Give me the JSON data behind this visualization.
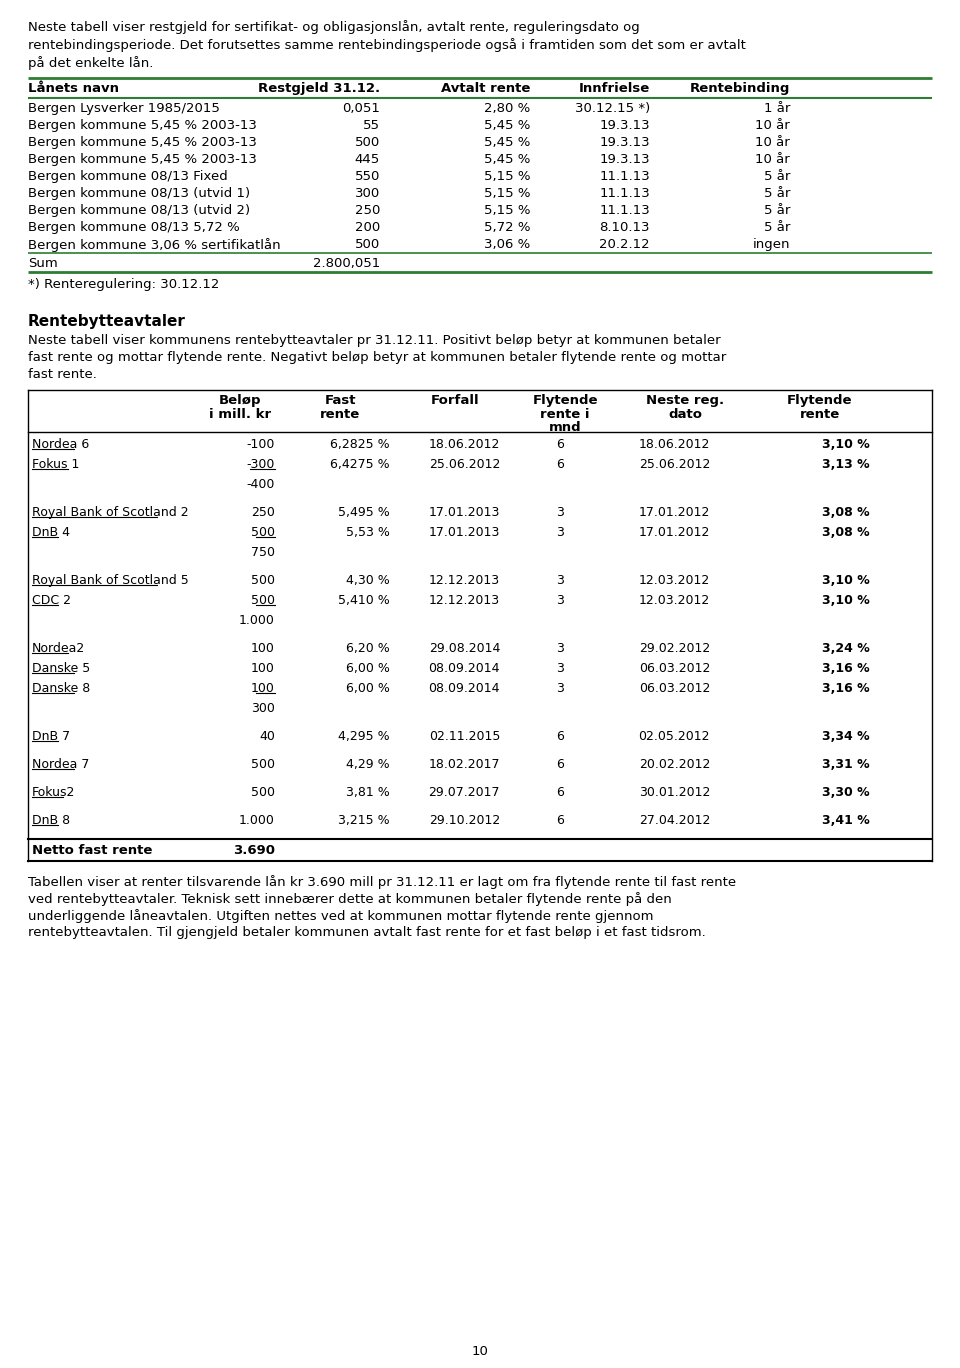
{
  "intro_text": "Neste tabell viser restgjeld for sertifikat- og obligasjonslån, avtalt rente, reguleringsdato og\nrentebindingsperiode. Det forutsettes samme rentebindingsperiode også i framtiden som det som er avtalt\npå det enkelte lån.",
  "table1_headers": [
    "Lånets navn",
    "Restgjeld 31.12.",
    "Avtalt rente",
    "Innfrielse",
    "Rentebinding"
  ],
  "table1_rows": [
    [
      "Bergen Lysverker 1985/2015",
      "0,051",
      "2,80 %",
      "30.12.15 *)",
      "1 år"
    ],
    [
      "Bergen kommune 5,45 % 2003-13",
      "55",
      "5,45 %",
      "19.3.13",
      "10 år"
    ],
    [
      "Bergen kommune 5,45 % 2003-13",
      "500",
      "5,45 %",
      "19.3.13",
      "10 år"
    ],
    [
      "Bergen kommune 5,45 % 2003-13",
      "445",
      "5,45 %",
      "19.3.13",
      "10 år"
    ],
    [
      "Bergen kommune 08/13 Fixed",
      "550",
      "5,15 %",
      "11.1.13",
      "5 år"
    ],
    [
      "Bergen kommune 08/13 (utvid 1)",
      "300",
      "5,15 %",
      "11.1.13",
      "5 år"
    ],
    [
      "Bergen kommune 08/13 (utvid 2)",
      "250",
      "5,15 %",
      "11.1.13",
      "5 år"
    ],
    [
      "Bergen kommune 08/13 5,72 %",
      "200",
      "5,72 %",
      "8.10.13",
      "5 år"
    ],
    [
      "Bergen kommune 3,06 % sertifikatlån",
      "500",
      "3,06 %",
      "20.2.12",
      "ingen"
    ]
  ],
  "table1_sum_label": "Sum",
  "table1_sum_value": "2.800,051",
  "footnote": "*) Renteregulering: 30.12.12",
  "section_title": "Rentebytteavtaler",
  "section_intro": "Neste tabell viser kommunens rentebytteavtaler pr 31.12.11. Positivt beløp betyr at kommunen betaler\nfast rente og mottar flytende rente. Negativt beløp betyr at kommunen betaler flytende rente og mottar\nfast rente.",
  "table2_col1_header": "",
  "table2_headers_row1": [
    "Beløp",
    "Fast",
    "Forfall",
    "Flytende",
    "Neste reg.",
    "Flytende"
  ],
  "table2_headers_row2": [
    "i mill. kr",
    "rente",
    "",
    "rente i\nmnd",
    "dato",
    "rente"
  ],
  "table2_groups": [
    {
      "rows": [
        {
          "name": "Nordea 6",
          "belop": "-100",
          "fast": "6,2825 %",
          "forfall": "18.06.2012",
          "flytende_mnd": "6",
          "neste_dato": "18.06.2012",
          "flytende_rente": "3,10 %",
          "underline_name": true,
          "underline_belop": false
        },
        {
          "name": "Fokus 1",
          "belop": "-300",
          "fast": "6,4275 %",
          "forfall": "25.06.2012",
          "flytende_mnd": "6",
          "neste_dato": "25.06.2012",
          "flytende_rente": "3,13 %",
          "underline_name": true,
          "underline_belop": true
        }
      ],
      "subtotal": "-400"
    },
    {
      "rows": [
        {
          "name": "Royal Bank of Scotland 2",
          "belop": "250",
          "fast": "5,495 %",
          "forfall": "17.01.2013",
          "flytende_mnd": "3",
          "neste_dato": "17.01.2012",
          "flytende_rente": "3,08 %",
          "underline_name": true,
          "underline_belop": false
        },
        {
          "name": "DnB 4",
          "belop": "500",
          "fast": "5,53 %",
          "forfall": "17.01.2013",
          "flytende_mnd": "3",
          "neste_dato": "17.01.2012",
          "flytende_rente": "3,08 %",
          "underline_name": true,
          "underline_belop": true
        }
      ],
      "subtotal": "750"
    },
    {
      "rows": [
        {
          "name": "Royal Bank of Scotland 5",
          "belop": "500",
          "fast": "4,30 %",
          "forfall": "12.12.2013",
          "flytende_mnd": "3",
          "neste_dato": "12.03.2012",
          "flytende_rente": "3,10 %",
          "underline_name": true,
          "underline_belop": false
        },
        {
          "name": "CDC 2",
          "belop": "500",
          "fast": "5,410 %",
          "forfall": "12.12.2013",
          "flytende_mnd": "3",
          "neste_dato": "12.03.2012",
          "flytende_rente": "3,10 %",
          "underline_name": true,
          "underline_belop": true
        }
      ],
      "subtotal": "1.000"
    },
    {
      "rows": [
        {
          "name": "Nordea2",
          "belop": "100",
          "fast": "6,20 %",
          "forfall": "29.08.2014",
          "flytende_mnd": "3",
          "neste_dato": "29.02.2012",
          "flytende_rente": "3,24 %",
          "underline_name": true,
          "underline_belop": false
        },
        {
          "name": "Danske 5",
          "belop": "100",
          "fast": "6,00 %",
          "forfall": "08.09.2014",
          "flytende_mnd": "3",
          "neste_dato": "06.03.2012",
          "flytende_rente": "3,16 %",
          "underline_name": true,
          "underline_belop": false
        },
        {
          "name": "Danske 8",
          "belop": "100",
          "fast": "6,00 %",
          "forfall": "08.09.2014",
          "flytende_mnd": "3",
          "neste_dato": "06.03.2012",
          "flytende_rente": "3,16 %",
          "underline_name": true,
          "underline_belop": true
        }
      ],
      "subtotal": "300"
    },
    {
      "rows": [
        {
          "name": "DnB 7",
          "belop": "40",
          "fast": "4,295 %",
          "forfall": "02.11.2015",
          "flytende_mnd": "6",
          "neste_dato": "02.05.2012",
          "flytende_rente": "3,34 %",
          "underline_name": true,
          "underline_belop": false
        }
      ],
      "subtotal": null
    },
    {
      "rows": [
        {
          "name": "Nordea 7",
          "belop": "500",
          "fast": "4,29 %",
          "forfall": "18.02.2017",
          "flytende_mnd": "6",
          "neste_dato": "20.02.2012",
          "flytende_rente": "3,31 %",
          "underline_name": true,
          "underline_belop": false
        }
      ],
      "subtotal": null
    },
    {
      "rows": [
        {
          "name": "Fokus2",
          "belop": "500",
          "fast": "3,81 %",
          "forfall": "29.07.2017",
          "flytende_mnd": "6",
          "neste_dato": "30.01.2012",
          "flytende_rente": "3,30 %",
          "underline_name": true,
          "underline_belop": false
        }
      ],
      "subtotal": null
    },
    {
      "rows": [
        {
          "name": "DnB 8",
          "belop": "1.000",
          "fast": "3,215 %",
          "forfall": "29.10.2012",
          "flytende_mnd": "6",
          "neste_dato": "27.04.2012",
          "flytende_rente": "3,41 %",
          "underline_name": true,
          "underline_belop": false
        }
      ],
      "subtotal": null
    }
  ],
  "table2_total_label": "Netto fast rente",
  "table2_total_value": "3.690",
  "outro_text": "Tabellen viser at renter tilsvarende lån kr 3.690 mill pr 31.12.11 er lagt om fra flytende rente til fast rente\nved rentebytteavtaler. Teknisk sett innebærer dette at kommunen betaler flytende rente på den\nunderliggende låneavtalen. Utgiften nettes ved at kommunen mottar flytende rente gjennom\nrentebytteavtalen. Til gjengjeld betaler kommunen avtalt fast rente for et fast beløp i et fast tidsrom.",
  "page_number": "10",
  "green_color": "#2E7D32",
  "bg_color": "#ffffff",
  "text_color": "#000000"
}
